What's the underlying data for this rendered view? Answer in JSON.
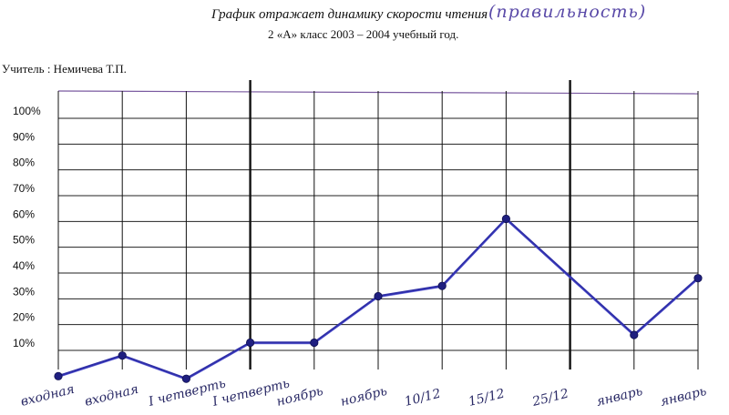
{
  "header": {
    "title": "График отражает динамику скорости чтения",
    "handwritten_note": "(правильность)",
    "subtitle": "2 «А» класс 2003 – 2004 учебный год.",
    "teacher": "Учитель : Немичева Т.П."
  },
  "colors": {
    "line": "#2f2fa8",
    "marker": "#1f1f80",
    "grid": "#222222",
    "top_border": "#7a5aa0"
  },
  "chart_data": {
    "type": "line",
    "categories": [
      "входная",
      "входная",
      "I четверть",
      "I четверть",
      "ноябрь",
      "ноябрь",
      "10/12",
      "15/12",
      "25/12",
      "январь",
      "январь"
    ],
    "y_ticks": [
      "100%",
      "90%",
      "80%",
      "70%",
      "60%",
      "50%",
      "40%",
      "30%",
      "20%",
      "10%"
    ],
    "ylim": [
      0,
      100
    ],
    "series": [
      {
        "values": [
          0,
          8,
          -1,
          13,
          13,
          31,
          35,
          61,
          null,
          16,
          38
        ],
        "marked": [
          true,
          true,
          true,
          true,
          true,
          true,
          true,
          true,
          false,
          true,
          true
        ]
      }
    ],
    "vertical_markers": [
      3,
      8
    ],
    "grid": true,
    "legend": "none"
  }
}
